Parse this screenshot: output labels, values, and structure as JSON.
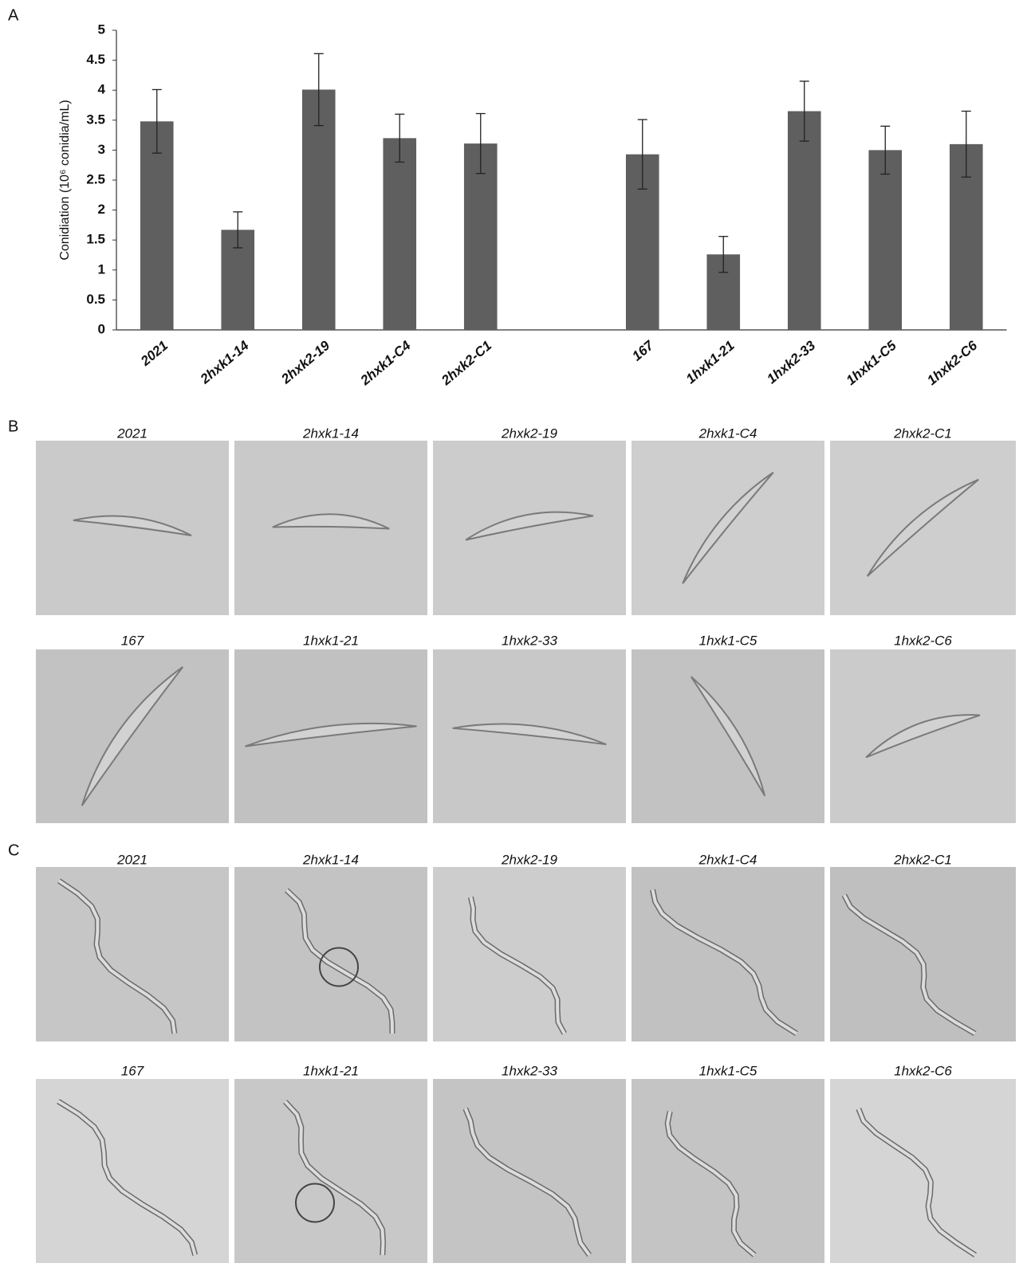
{
  "chart_data": {
    "type": "bar",
    "ylabel": "Conidiation (10⁶ conidia/mL)",
    "categories": [
      "2021",
      "2hxk1-14",
      "2hxk2-19",
      "2hxk1-C4",
      "2hxk2-C1",
      null,
      "167",
      "1hxk1-21",
      "1hxk2-33",
      "1hxk1-C5",
      "1hxk2-C6"
    ],
    "values": [
      3.48,
      1.67,
      4.01,
      3.2,
      3.11,
      null,
      2.93,
      1.26,
      3.65,
      3.0,
      3.1
    ],
    "errors": [
      0.53,
      0.3,
      0.6,
      0.4,
      0.5,
      null,
      0.58,
      0.3,
      0.5,
      0.4,
      0.55
    ],
    "color": "#5f5f5f",
    "ylim": [
      0,
      5
    ],
    "yticks": [
      0,
      0.5,
      1,
      1.5,
      2,
      2.5,
      3,
      3.5,
      4,
      4.5,
      5
    ],
    "grid": false
  },
  "figure": {
    "panel_labels": [
      "A",
      "B",
      "C"
    ],
    "micrographs": {
      "B": [
        [
          "2021",
          "2hxk1-14",
          "2hxk2-19",
          "2hxk1-C4",
          "2hxk2-C1"
        ],
        [
          "167",
          "1hxk1-21",
          "1hxk2-33",
          "1hxk1-C5",
          "1hxk2-C6"
        ]
      ],
      "C": [
        [
          "2021",
          "2hxk1-14",
          "2hxk2-19",
          "2hxk1-C4",
          "2hxk2-C1"
        ],
        [
          "167",
          "1hxk1-21",
          "1hxk2-33",
          "1hxk1-C5",
          "1hxk2-C6"
        ]
      ]
    }
  }
}
